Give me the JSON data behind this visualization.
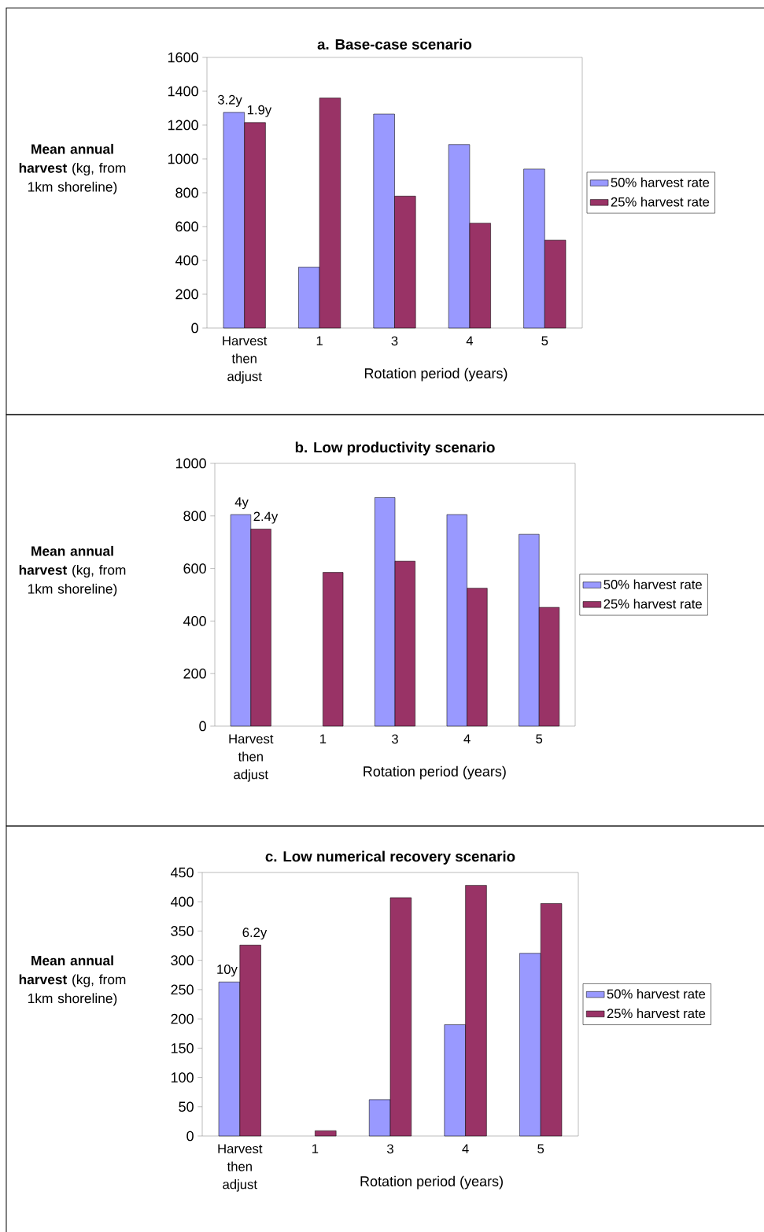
{
  "chart_data": [
    {
      "type": "bar",
      "title": "a. Base-case scenario",
      "xlabel": "Rotation period (years)",
      "ylabel": "**Mean annual harvest** (kg, from 1km shoreline)",
      "categories": [
        "Harvest then adjust",
        "1",
        "3",
        "4",
        "5"
      ],
      "series": [
        {
          "name": "50% harvest rate",
          "color": "#9999ff",
          "values": [
            1275,
            360,
            1265,
            1085,
            940
          ]
        },
        {
          "name": "25% harvest rate",
          "color": "#993366",
          "values": [
            1215,
            1360,
            780,
            620,
            520
          ]
        }
      ],
      "ylim": [
        0,
        1600
      ],
      "yticks": [
        0,
        200,
        400,
        600,
        800,
        1000,
        1200,
        1400,
        1600
      ],
      "legend": "right",
      "annotations": [
        {
          "text": "3.2y",
          "x": "Harvest then adjust",
          "y": 1275
        },
        {
          "text": "1.9y",
          "x": "Harvest then adjust",
          "y": 1215
        }
      ]
    },
    {
      "type": "bar",
      "title": "b. Low productivity scenario",
      "xlabel": "Rotation period (years)",
      "ylabel": "**Mean annual harvest** (kg, from 1km shoreline)",
      "categories": [
        "Harvest then adjust",
        "1",
        "3",
        "4",
        "5"
      ],
      "series": [
        {
          "name": "50% harvest rate",
          "color": "#9999ff",
          "values": [
            805,
            null,
            870,
            805,
            730
          ]
        },
        {
          "name": "25% harvest rate",
          "color": "#993366",
          "values": [
            750,
            585,
            628,
            525,
            452
          ]
        }
      ],
      "ylim": [
        0,
        1000
      ],
      "yticks": [
        0,
        200,
        400,
        600,
        800,
        1000
      ],
      "legend": "right",
      "annotations": [
        {
          "text": "4y",
          "x": "Harvest then adjust",
          "y": 805
        },
        {
          "text": "2.4y",
          "x": "Harvest then adjust",
          "y": 750
        }
      ]
    },
    {
      "type": "bar",
      "title": "c. Low numerical recovery scenario",
      "xlabel": "Rotation period (years)",
      "ylabel": "**Mean annual harvest** (kg, from 1km shoreline)",
      "categories": [
        "Harvest then adjust",
        "1",
        "3",
        "4",
        "5"
      ],
      "series": [
        {
          "name": "50% harvest rate",
          "color": "#9999ff",
          "values": [
            263,
            null,
            62,
            190,
            312
          ]
        },
        {
          "name": "25% harvest rate",
          "color": "#993366",
          "values": [
            326,
            9,
            407,
            428,
            397
          ]
        }
      ],
      "ylim": [
        0,
        450
      ],
      "yticks": [
        0,
        50,
        100,
        150,
        200,
        250,
        300,
        350,
        400,
        450
      ],
      "legend": "right",
      "annotations": [
        {
          "text": "10y",
          "x": "Harvest then adjust",
          "y": 263
        },
        {
          "text": "6.2y",
          "x": "Harvest then adjust",
          "y": 326
        }
      ]
    }
  ]
}
